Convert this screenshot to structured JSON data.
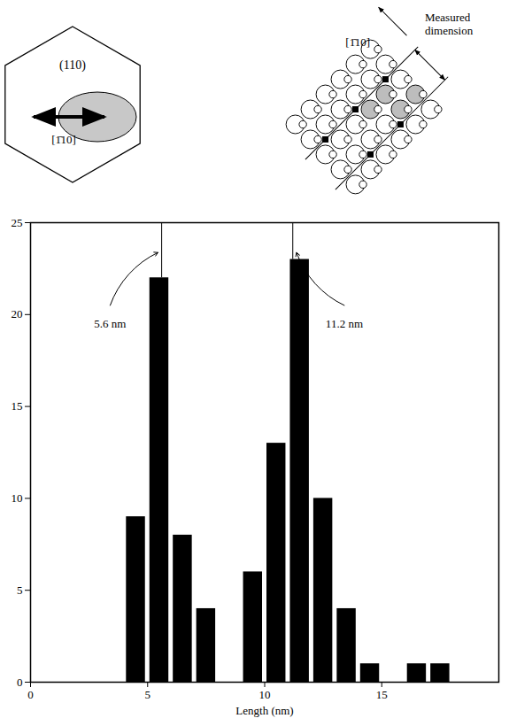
{
  "chart_data": {
    "type": "histogram",
    "bins": [
      4,
      5,
      6,
      7,
      8,
      9,
      10,
      11,
      12,
      13,
      14,
      15,
      16,
      17,
      18
    ],
    "values": [
      9,
      22,
      8,
      4,
      0,
      6,
      13,
      23,
      10,
      4,
      1,
      0,
      1,
      1
    ],
    "color": "#000000",
    "xlabel": "Length (nm)",
    "xlim": [
      0,
      20
    ],
    "xticks": [
      0,
      5,
      10,
      15
    ],
    "ylim": [
      0,
      25
    ],
    "yticks": [
      0,
      5,
      10,
      15,
      20,
      25
    ],
    "annotations": [
      {
        "x": 5.6,
        "label": "5.6 nm"
      },
      {
        "x": 11.2,
        "label": "11.2 nm"
      }
    ]
  },
  "diagram": {
    "plane_label": "(110)",
    "plane_arrow_label": "[1̄10]",
    "lattice_arrow_label": "[1̄10]",
    "measured_label": "Measured dimension"
  }
}
